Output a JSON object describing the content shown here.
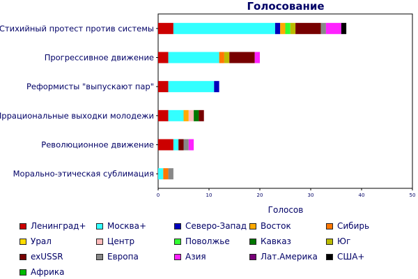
{
  "chart_data": {
    "type": "bar",
    "orientation": "horizontal",
    "stacked": true,
    "title": "Голосование",
    "xlabel": "Голосов",
    "ylabel": "",
    "xlim": [
      0,
      50
    ],
    "xticks": [
      0,
      10,
      20,
      30,
      40,
      50
    ],
    "grid": false,
    "legend_position": "bottom",
    "categories": [
      "Стихийный протест против системы",
      "Прогрессивное движение",
      "Реформисты \"выпускают пар\"",
      "Иррациональные выходки молодежи",
      "Революционное движение",
      "Морально-этическая сублимация"
    ],
    "series": [
      {
        "name": "Ленинград+",
        "color": "#cc0000",
        "values": [
          3,
          2,
          2,
          2,
          3,
          0
        ]
      },
      {
        "name": "Москва+",
        "color": "#33ffff",
        "values": [
          20,
          10,
          9,
          3,
          1,
          1
        ]
      },
      {
        "name": "Северо-Запад",
        "color": "#0000bb",
        "values": [
          1,
          0,
          1,
          0,
          0,
          0
        ]
      },
      {
        "name": "Восток",
        "color": "#ffaa00",
        "values": [
          1,
          0,
          0,
          1,
          0,
          0
        ]
      },
      {
        "name": "Сибирь",
        "color": "#ff7700",
        "values": [
          0,
          1,
          0,
          0,
          0,
          1
        ]
      },
      {
        "name": "Урал",
        "color": "#ffdd00",
        "values": [
          0,
          0,
          0,
          0,
          0,
          0
        ]
      },
      {
        "name": "Центр",
        "color": "#ffbbbb",
        "values": [
          0,
          0,
          0,
          1,
          0,
          0
        ]
      },
      {
        "name": "Поволжье",
        "color": "#33ff33",
        "values": [
          1,
          0,
          0,
          0,
          0,
          0
        ]
      },
      {
        "name": "Кавказ",
        "color": "#007700",
        "values": [
          0,
          0,
          0,
          1,
          0,
          0
        ]
      },
      {
        "name": "Юг",
        "color": "#bbbb00",
        "values": [
          1,
          1,
          0,
          0,
          0,
          0
        ]
      },
      {
        "name": "exUSSR",
        "color": "#770000",
        "values": [
          5,
          5,
          0,
          1,
          1,
          0
        ]
      },
      {
        "name": "Европа",
        "color": "#888888",
        "values": [
          1,
          0,
          0,
          0,
          1,
          1
        ]
      },
      {
        "name": "Азия",
        "color": "#ff22ff",
        "values": [
          3,
          1,
          0,
          0,
          1,
          0
        ]
      },
      {
        "name": "Лат.Америка",
        "color": "#770077",
        "values": [
          0,
          0,
          0,
          0,
          0,
          0
        ]
      },
      {
        "name": "США+",
        "color": "#000000",
        "values": [
          1,
          0,
          0,
          0,
          0,
          0
        ]
      },
      {
        "name": "Африка",
        "color": "#00bb00",
        "values": [
          0,
          0,
          0,
          0,
          0,
          0
        ]
      }
    ]
  }
}
